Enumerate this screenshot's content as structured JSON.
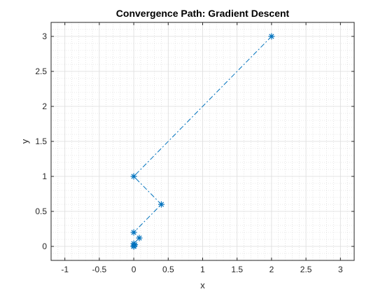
{
  "chart_data": {
    "type": "line",
    "title": "Convergence Path: Gradient Descent",
    "xlabel": "x",
    "ylabel": "y",
    "xlim": [
      -1.2,
      3.2
    ],
    "ylim": [
      -0.2,
      3.2
    ],
    "xticks": [
      "-1",
      "-0.5",
      "0",
      "0.5",
      "1",
      "1.5",
      "2",
      "2.5",
      "3"
    ],
    "yticks": [
      "0",
      "0.5",
      "1",
      "1.5",
      "2",
      "2.5",
      "3"
    ],
    "grid": true,
    "minor_grid": true,
    "series": [
      {
        "marker": "asterisk",
        "line_style": "dash-dot",
        "color": "#0072BD",
        "x": [
          2,
          0,
          0.4,
          0,
          0.08,
          0,
          0.016,
          0,
          0.0032,
          0,
          0.0006,
          0
        ],
        "y": [
          3,
          1,
          0.6,
          0.2,
          0.12,
          0.04,
          0.024,
          0.008,
          0.0048,
          0.0016,
          0.001,
          0.0003
        ]
      }
    ]
  }
}
